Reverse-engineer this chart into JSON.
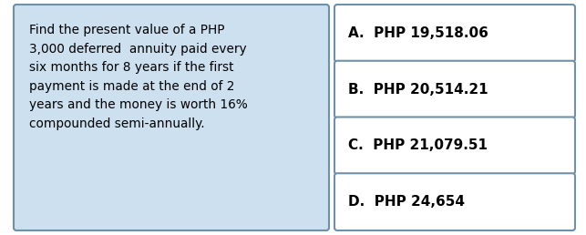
{
  "question_lines": [
    "Find the present value of a PHP",
    "3,000 deferred  annuity paid every",
    "six months for 8 years if the first",
    "payment is made at the end of 2",
    "years and the money is worth 16%",
    "compounded semi-annually."
  ],
  "options": [
    "A.  PHP 19,518.06",
    "B.  PHP 20,514.21",
    "C.  PHP 21,079.51",
    "D.  PHP 24,654"
  ],
  "question_box_color": "#cde0f0",
  "option_box_color": "#ffffff",
  "text_color": "#000000",
  "border_color": "#7090a8",
  "background_color": "#ffffff",
  "question_fontsize": 9.8,
  "option_fontsize": 11.0
}
